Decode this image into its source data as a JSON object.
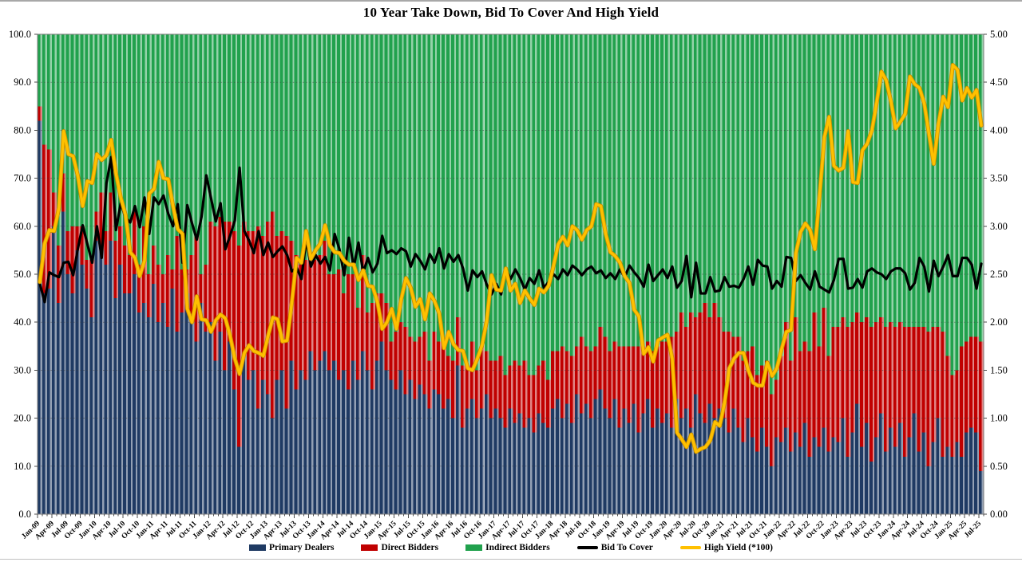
{
  "chart_data": {
    "type": "combo-stacked-bar-and-lines",
    "title": "10 Year Take Down, Bid To Cover And High Yield",
    "x": {
      "start": "Jan-09",
      "end": "Jul-25",
      "frequency": "monthly",
      "n_points": 199,
      "tick_labels": [
        "Jan-09",
        "Apr-09",
        "Jul-09",
        "Oct-09",
        "Jan-10",
        "Apr-10",
        "Jul-10",
        "Oct-10",
        "Jan-11",
        "Apr-11",
        "Jul-11",
        "Oct-11",
        "Jan-12",
        "Apr-12",
        "Jul-12",
        "Oct-12",
        "Jan-13",
        "Apr-13",
        "Jul-13",
        "Oct-13",
        "Jan-14",
        "Apr-14",
        "Jul-14",
        "Oct-14",
        "Jan-15",
        "Apr-15",
        "Jul-15",
        "Oct-15",
        "Jan-16",
        "Apr-16",
        "Jul-16",
        "Oct-16",
        "Jan-17",
        "Apr-17",
        "Jul-17",
        "Oct-17",
        "Jan-18",
        "Apr-18",
        "Jul-18",
        "Oct-18",
        "Jan-19",
        "Apr-19",
        "Jul-19",
        "Oct-19",
        "Jan-20",
        "Apr-20",
        "Jul-20",
        "Oct-20",
        "Jan-21",
        "Apr-21",
        "Jul-21",
        "Oct-21",
        "Jan-22",
        "Apr-22",
        "Jul-22",
        "Oct-22",
        "Jan-23",
        "Apr-23",
        "Jul-23",
        "Oct-23",
        "Jan-24",
        "Apr-24",
        "Jul-24",
        "Oct-24",
        "Jan-25",
        "Apr-25",
        "Jul-25"
      ],
      "tick_every_n_months": 3
    },
    "left_axis": {
      "min": 0,
      "max": 100,
      "tick_step": 10,
      "tick_labels": [
        "100.0",
        "90.0",
        "80.0",
        "70.0",
        "60.0",
        "50.0",
        "40.0",
        "30.0",
        "20.0",
        "10.0",
        "0.0"
      ]
    },
    "right_axis": {
      "min": 0,
      "max": 5,
      "tick_step": 0.5,
      "tick_labels": [
        "5.00",
        "4.50",
        "4.00",
        "3.50",
        "3.00",
        "2.50",
        "2.00",
        "1.50",
        "1.00",
        "0.50",
        "0.00"
      ]
    },
    "grid": "horizontal-dashed",
    "bar_series": [
      {
        "name": "Primary Dealers",
        "color": "#1f3a63",
        "axis": "left",
        "values": [
          82,
          46,
          47,
          60,
          44,
          63,
          50,
          46,
          55,
          52,
          47,
          41,
          57,
          55,
          52,
          57,
          45,
          52,
          46,
          46,
          50,
          42,
          44,
          41,
          48,
          40,
          44,
          39,
          47,
          38,
          42,
          46,
          40,
          36,
          44,
          38,
          40,
          32,
          38,
          30,
          36,
          26,
          14,
          33,
          28,
          30,
          22,
          28,
          25,
          20,
          28,
          30,
          22,
          32,
          26,
          30,
          28,
          34,
          30,
          32,
          34,
          30,
          32,
          28,
          30,
          26,
          32,
          28,
          34,
          30,
          26,
          32,
          36,
          30,
          28,
          26,
          30,
          25,
          28,
          24,
          27,
          25,
          22,
          26,
          25,
          22,
          24,
          20,
          31,
          18,
          22,
          24,
          20,
          22,
          25,
          20,
          22,
          20,
          18,
          22,
          19,
          21,
          18,
          20,
          17,
          21,
          19,
          18,
          22,
          24,
          20,
          23,
          19,
          25,
          21,
          23,
          20,
          24,
          26,
          22,
          20,
          24,
          18,
          22,
          19,
          23,
          17,
          21,
          24,
          18,
          22,
          19,
          21,
          18,
          24,
          20,
          22,
          18,
          25,
          21,
          19,
          23,
          20,
          22,
          20,
          17,
          22,
          18,
          15,
          20,
          16,
          13,
          18,
          14,
          10,
          16,
          15,
          18,
          13,
          17,
          14,
          19,
          12,
          16,
          14,
          18,
          13,
          16,
          15,
          20,
          12,
          17,
          23,
          14,
          19,
          11,
          16,
          21,
          13,
          18,
          14,
          19,
          12,
          16,
          21,
          13,
          17,
          10,
          15,
          20,
          12,
          14,
          12,
          15,
          12,
          17,
          18,
          17,
          9
        ]
      },
      {
        "name": "Direct Bidders",
        "color": "#c00000",
        "axis": "left",
        "values": [
          3,
          31,
          29,
          7,
          12,
          8,
          9,
          14,
          5,
          8,
          6,
          12,
          6,
          12,
          7,
          10,
          12,
          8,
          10,
          8,
          13,
          10,
          16,
          9,
          8,
          12,
          6,
          15,
          4,
          20,
          9,
          5,
          14,
          22,
          6,
          14,
          21,
          28,
          24,
          31,
          25,
          33,
          42,
          28,
          31,
          29,
          38,
          30,
          36,
          43,
          30,
          29,
          36,
          25,
          28,
          22,
          25,
          20,
          23,
          22,
          23,
          20,
          18,
          23,
          16,
          24,
          18,
          15,
          20,
          12,
          18,
          14,
          10,
          14,
          8,
          12,
          10,
          14,
          9,
          12,
          10,
          13,
          10,
          12,
          11,
          14,
          9,
          12,
          10,
          13,
          9,
          12,
          10,
          13,
          9,
          12,
          10,
          13,
          11,
          9,
          13,
          10,
          14,
          9,
          12,
          10,
          13,
          10,
          12,
          10,
          15,
          11,
          14,
          10,
          16,
          12,
          14,
          11,
          13,
          15,
          14,
          12,
          17,
          13,
          16,
          12,
          18,
          14,
          12,
          16,
          13,
          17,
          15,
          19,
          14,
          22,
          17,
          24,
          16,
          21,
          25,
          18,
          24,
          19,
          18,
          21,
          15,
          19,
          17,
          14,
          19,
          16,
          13,
          18,
          15,
          12,
          18,
          22,
          19,
          24,
          20,
          17,
          22,
          26,
          21,
          25,
          20,
          23,
          24,
          21,
          27,
          23,
          19,
          26,
          22,
          28,
          24,
          20,
          26,
          22,
          25,
          21,
          27,
          23,
          18,
          26,
          22,
          28,
          24,
          19,
          26,
          19,
          17,
          15,
          23,
          19,
          19,
          20,
          27
        ]
      },
      {
        "name": "Indirect Bidders",
        "color": "#21a14d",
        "axis": "left",
        "values": [
          15,
          23,
          24,
          33,
          44,
          29,
          41,
          40,
          40,
          40,
          47,
          47,
          37,
          33,
          41,
          33,
          43,
          40,
          44,
          46,
          37,
          48,
          40,
          50,
          44,
          48,
          50,
          46,
          49,
          42,
          49,
          49,
          46,
          42,
          50,
          48,
          39,
          40,
          38,
          39,
          39,
          41,
          44,
          39,
          41,
          41,
          40,
          42,
          39,
          37,
          42,
          41,
          42,
          43,
          46,
          48,
          47,
          46,
          47,
          46,
          43,
          50,
          50,
          49,
          54,
          50,
          50,
          57,
          46,
          58,
          56,
          54,
          54,
          56,
          64,
          62,
          60,
          61,
          63,
          64,
          63,
          62,
          68,
          62,
          64,
          64,
          67,
          68,
          59,
          69,
          69,
          64,
          70,
          65,
          66,
          68,
          68,
          67,
          71,
          69,
          68,
          69,
          68,
          71,
          71,
          69,
          68,
          72,
          66,
          66,
          65,
          66,
          67,
          65,
          63,
          65,
          66,
          65,
          61,
          63,
          66,
          64,
          65,
          65,
          65,
          65,
          65,
          65,
          64,
          66,
          65,
          64,
          64,
          63,
          62,
          58,
          61,
          58,
          59,
          58,
          56,
          59,
          56,
          59,
          62,
          62,
          63,
          63,
          68,
          66,
          65,
          71,
          69,
          68,
          75,
          72,
          67,
          60,
          68,
          59,
          66,
          64,
          66,
          58,
          65,
          57,
          67,
          61,
          61,
          59,
          61,
          60,
          58,
          60,
          59,
          61,
          60,
          59,
          61,
          60,
          61,
          60,
          61,
          61,
          61,
          61,
          61,
          62,
          61,
          61,
          62,
          67,
          71,
          70,
          65,
          64,
          63,
          63,
          64
        ]
      }
    ],
    "line_series": [
      {
        "name": "Bid To Cover",
        "color": "#000000",
        "axis": "right",
        "values": [
          2.4,
          2.21,
          2.52,
          2.49,
          2.47,
          2.62,
          2.63,
          2.49,
          2.77,
          3.01,
          2.81,
          2.62,
          3.0,
          2.67,
          3.45,
          3.72,
          2.96,
          3.24,
          3.09,
          3.04,
          3.21,
          2.99,
          3.3,
          2.92,
          3.3,
          3.23,
          3.32,
          3.13,
          3.0,
          3.23,
          2.62,
          3.22,
          3.03,
          2.86,
          3.1,
          3.53,
          3.29,
          3.05,
          3.24,
          2.76,
          2.9,
          3.06,
          3.61,
          2.95,
          2.85,
          2.72,
          2.95,
          2.7,
          2.83,
          2.68,
          2.74,
          2.79,
          2.7,
          2.53,
          2.57,
          2.45,
          2.86,
          2.58,
          2.7,
          2.61,
          2.68,
          2.54,
          2.92,
          2.76,
          2.49,
          2.88,
          2.57,
          2.83,
          2.52,
          2.67,
          2.52,
          2.61,
          2.9,
          2.72,
          2.75,
          2.71,
          2.77,
          2.74,
          2.58,
          2.71,
          2.64,
          2.55,
          2.71,
          2.62,
          2.77,
          2.56,
          2.71,
          2.63,
          2.7,
          2.56,
          2.33,
          2.54,
          2.47,
          2.53,
          2.39,
          2.29,
          2.4,
          2.29,
          2.55,
          2.45,
          2.55,
          2.46,
          2.34,
          2.46,
          2.4,
          2.54,
          2.36,
          2.42,
          2.5,
          2.45,
          2.55,
          2.49,
          2.59,
          2.55,
          2.49,
          2.55,
          2.58,
          2.51,
          2.54,
          2.46,
          2.51,
          2.45,
          2.55,
          2.47,
          2.59,
          2.52,
          2.46,
          2.37,
          2.6,
          2.43,
          2.49,
          2.55,
          2.46,
          2.58,
          2.36,
          2.43,
          2.69,
          2.26,
          2.62,
          2.3,
          2.3,
          2.47,
          2.32,
          2.33,
          2.47,
          2.37,
          2.38,
          2.36,
          2.45,
          2.58,
          2.39,
          2.65,
          2.59,
          2.58,
          2.35,
          2.43,
          2.37,
          2.68,
          2.67,
          2.43,
          2.49,
          2.41,
          2.34,
          2.53,
          2.37,
          2.34,
          2.31,
          2.44,
          2.66,
          2.66,
          2.35,
          2.36,
          2.45,
          2.36,
          2.53,
          2.56,
          2.52,
          2.5,
          2.45,
          2.53,
          2.56,
          2.56,
          2.51,
          2.34,
          2.41,
          2.67,
          2.58,
          2.32,
          2.64,
          2.48,
          2.58,
          2.7,
          2.48,
          2.48,
          2.67,
          2.67,
          2.6,
          2.35,
          2.61
        ]
      },
      {
        "name": "High Yield (*100)",
        "color": "#ffc000",
        "axis": "right",
        "values": [
          2.42,
          2.82,
          2.96,
          2.95,
          3.19,
          3.99,
          3.75,
          3.73,
          3.52,
          3.21,
          3.47,
          3.45,
          3.75,
          3.69,
          3.74,
          3.9,
          3.55,
          3.3,
          3.12,
          2.73,
          2.67,
          2.48,
          2.64,
          3.34,
          3.39,
          3.67,
          3.5,
          3.49,
          3.21,
          2.97,
          2.92,
          2.14,
          2.0,
          2.27,
          2.03,
          2.02,
          1.9,
          2.02,
          2.08,
          2.04,
          1.86,
          1.62,
          1.46,
          1.68,
          1.76,
          1.7,
          1.68,
          1.65,
          1.86,
          2.05,
          2.03,
          1.8,
          1.81,
          2.21,
          2.67,
          2.62,
          2.95,
          2.66,
          2.75,
          2.82,
          3.01,
          2.8,
          2.73,
          2.72,
          2.64,
          2.6,
          2.6,
          2.44,
          2.54,
          2.38,
          2.37,
          2.21,
          1.93,
          2.0,
          2.14,
          1.93,
          2.24,
          2.46,
          2.36,
          2.16,
          2.24,
          2.03,
          2.3,
          2.22,
          2.09,
          1.73,
          1.9,
          1.77,
          1.71,
          1.7,
          1.52,
          1.5,
          1.62,
          1.76,
          2.02,
          2.49,
          2.34,
          2.33,
          2.56,
          2.33,
          2.4,
          2.2,
          2.33,
          2.25,
          2.18,
          2.35,
          2.31,
          2.38,
          2.58,
          2.81,
          2.89,
          2.8,
          3.0,
          2.96,
          2.86,
          2.96,
          3.0,
          3.23,
          3.21,
          2.92,
          2.73,
          2.69,
          2.62,
          2.48,
          2.41,
          2.13,
          2.06,
          1.67,
          1.74,
          1.59,
          1.81,
          1.84,
          1.87,
          1.62,
          0.85,
          0.78,
          0.7,
          0.83,
          0.65,
          0.68,
          0.7,
          0.77,
          0.96,
          0.92,
          1.16,
          1.52,
          1.62,
          1.68,
          1.68,
          1.5,
          1.37,
          1.34,
          1.34,
          1.58,
          1.44,
          1.52,
          1.72,
          1.9,
          1.92,
          2.72,
          2.94,
          3.03,
          2.96,
          2.76,
          3.33,
          3.93,
          4.14,
          3.63,
          3.58,
          3.61,
          3.99,
          3.46,
          3.45,
          3.79,
          3.86,
          4.0,
          4.29,
          4.61,
          4.52,
          4.3,
          4.02,
          4.09,
          4.17,
          4.56,
          4.48,
          4.44,
          4.28,
          3.96,
          3.65,
          4.07,
          4.35,
          4.24,
          4.68,
          4.63,
          4.31,
          4.44,
          4.34,
          4.42,
          4.05
        ]
      }
    ]
  },
  "legend": {
    "items": [
      {
        "label": "Primary Dealers",
        "swatch": "box",
        "color": "#1f3a63"
      },
      {
        "label": "Direct Bidders",
        "swatch": "box",
        "color": "#c00000"
      },
      {
        "label": "Indirect Bidders",
        "swatch": "box",
        "color": "#21a14d"
      },
      {
        "label": "Bid To Cover",
        "swatch": "line",
        "color": "#000000"
      },
      {
        "label": "High Yield (*100)",
        "swatch": "line",
        "color": "#ffc000"
      }
    ]
  }
}
